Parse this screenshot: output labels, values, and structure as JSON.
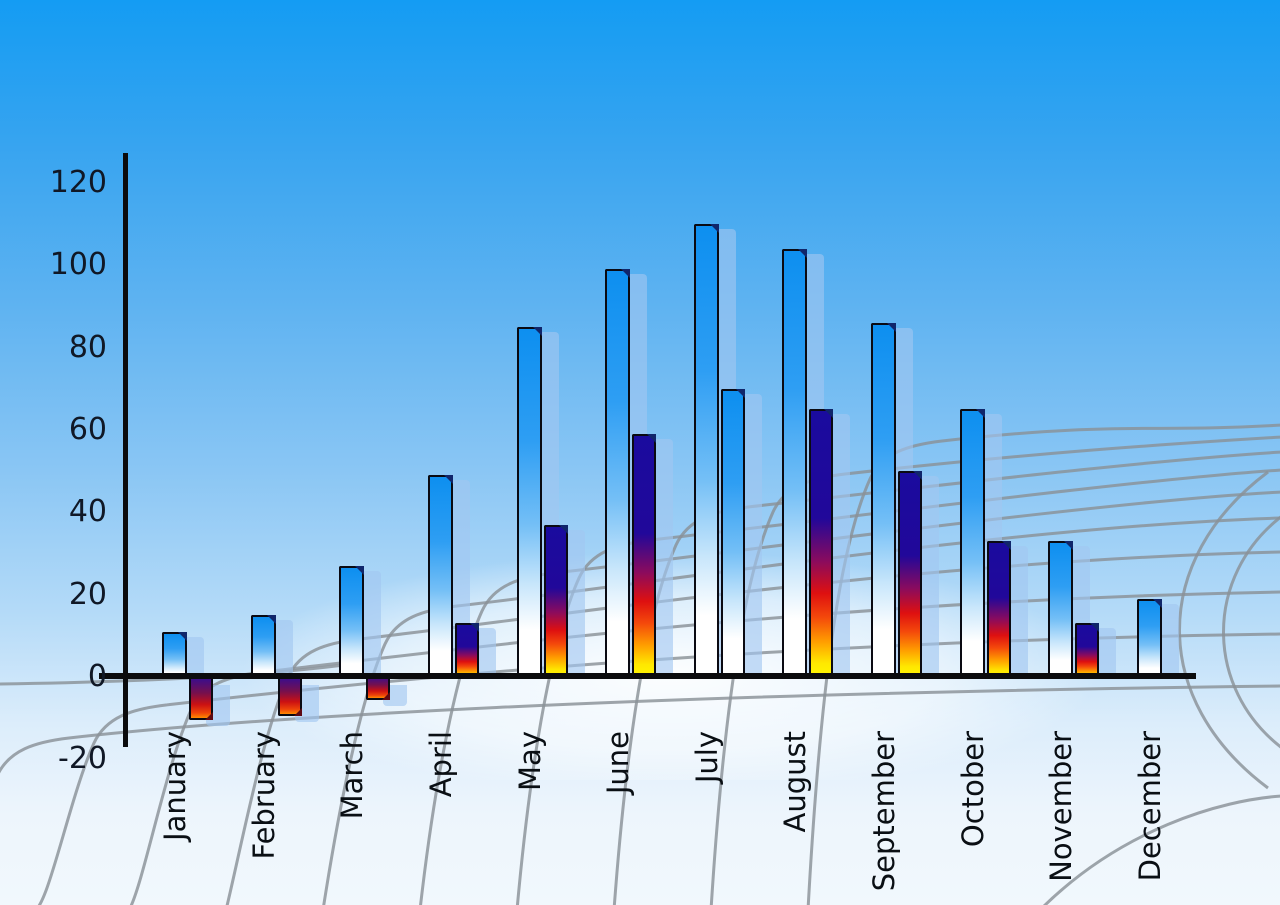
{
  "figure_type": "3d-style monthly bar chart on sky background",
  "chart_data": {
    "type": "bar",
    "title": "",
    "xlabel": "",
    "ylabel": "",
    "categories": [
      "January",
      "February",
      "March",
      "April",
      "May",
      "June",
      "July",
      "August",
      "September",
      "October",
      "November",
      "December"
    ],
    "series": [
      {
        "name": "blue gradient bars",
        "values": [
          11,
          15,
          27,
          49,
          85,
          99,
          110,
          104,
          86,
          65,
          33,
          19
        ]
      },
      {
        "name": "heat gradient companion bars",
        "values": [
          -10,
          -9,
          -5,
          13,
          37,
          59,
          70,
          65,
          50,
          33,
          13,
          null
        ],
        "bar_style": [
          "heat",
          "heat",
          "heat",
          "heat",
          "heat",
          "heat",
          "blue",
          "heat",
          "heat",
          "heat",
          "heat",
          null
        ]
      }
    ],
    "ylim": [
      -20,
      120
    ],
    "yticks": [
      120,
      100,
      80,
      60,
      40,
      20,
      0,
      -20
    ],
    "legend": "none",
    "grid": "curved gray perspective floor grid",
    "background": "blue sky gradient",
    "bar_effects": "each bar has a light-blue echo shadow offset right and a dark beveled corner"
  },
  "colors": {
    "sky_top": "#149CF3",
    "sky_bottom": "#F1F8FD",
    "bar_blue_top": "#0D8FF0",
    "bar_blue_bottom": "#FFFFFF",
    "heat_top_navy": "#1A0B9E",
    "heat_red": "#DE1010",
    "heat_bottom_yellow": "#FFF800",
    "negative_top": "#300D98",
    "negative_bottom": "#FF8A00",
    "echo_shadow": "rgba(161,199,240,0.62)",
    "grid_line": "#8A9197",
    "axis": "#0B0B0D",
    "label_text": "#0A0F14"
  }
}
